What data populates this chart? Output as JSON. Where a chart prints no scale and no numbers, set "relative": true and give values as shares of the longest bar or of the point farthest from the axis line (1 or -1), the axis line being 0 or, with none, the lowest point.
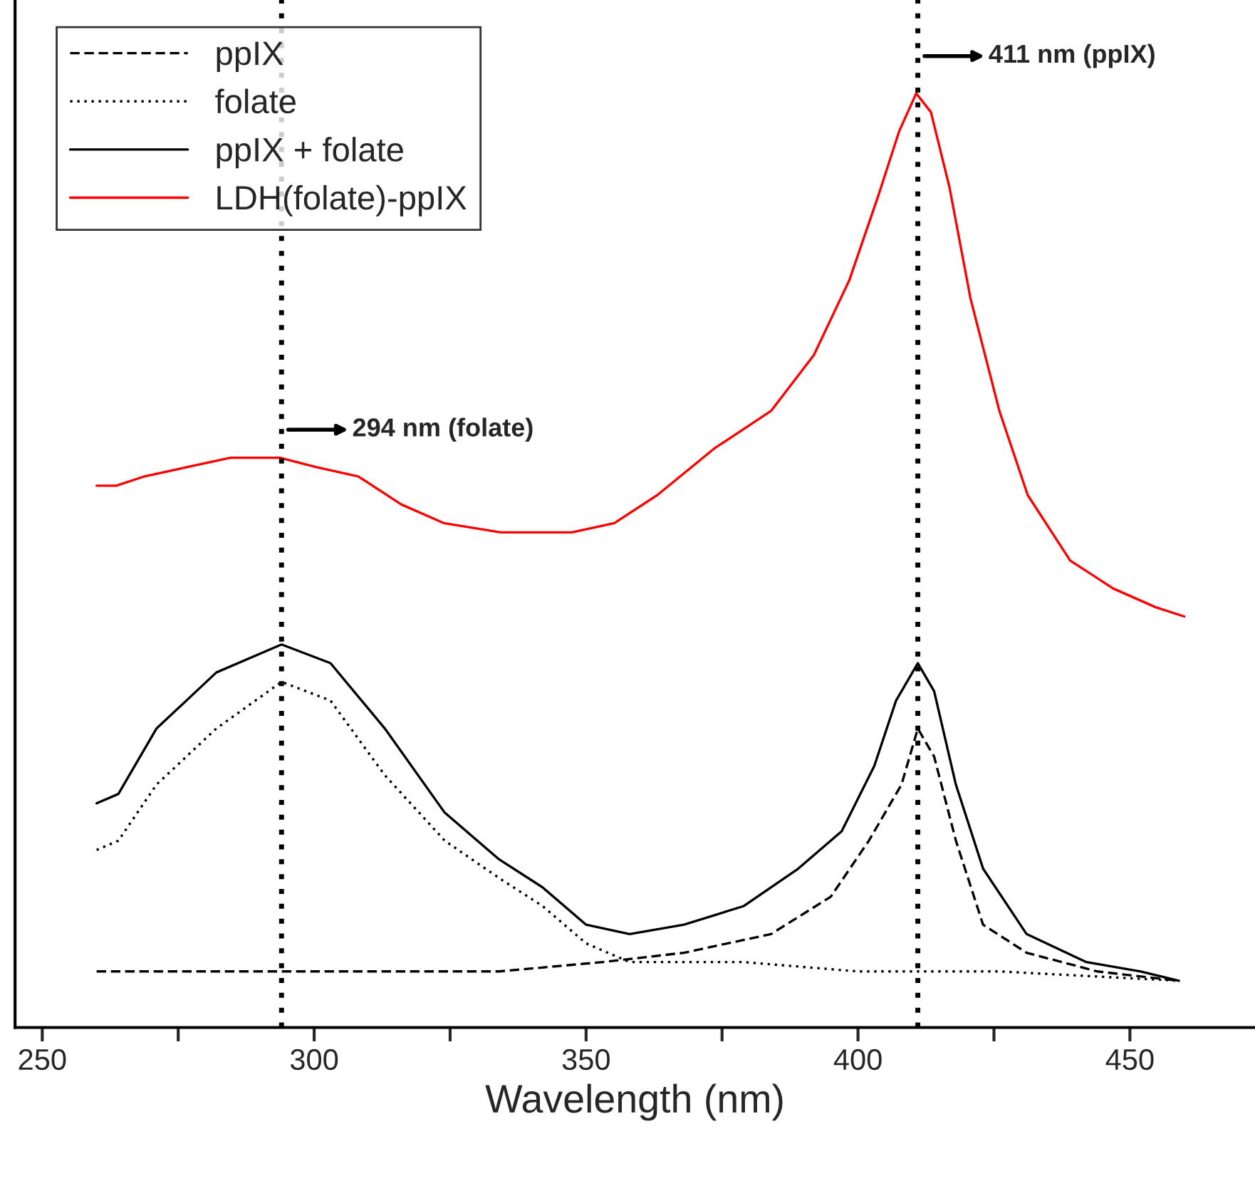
{
  "chart_data": {
    "type": "line",
    "relative": true,
    "xlabel": "Wavelength (nm)",
    "xlim": [
      245,
      473
    ],
    "xticks": [
      250,
      {
        "value": 275,
        "label": null
      },
      300,
      {
        "value": 325,
        "label": null
      },
      350,
      {
        "value": 375,
        "label": null
      },
      400,
      {
        "value": 425,
        "label": null
      },
      450
    ],
    "grid": false,
    "legend": "top left",
    "marker": "none",
    "series": [
      {
        "name": "ppIX",
        "color": "#000000",
        "line_style": "dashed",
        "x": [
          260,
          282,
          308,
          334,
          353,
          368,
          384,
          395,
          402,
          408,
          411,
          414,
          418,
          423,
          431,
          444,
          459
        ],
        "values": [
          0.06,
          0.06,
          0.06,
          0.06,
          0.07,
          0.08,
          0.1,
          0.14,
          0.2,
          0.26,
          0.32,
          0.29,
          0.2,
          0.11,
          0.08,
          0.06,
          0.05
        ]
      },
      {
        "name": "folate",
        "color": "#000000",
        "line_style": "dotted",
        "x": [
          260,
          264,
          271,
          282,
          294,
          303,
          313,
          324,
          334,
          342,
          350,
          358,
          366,
          379,
          400,
          426,
          459
        ],
        "values": [
          0.19,
          0.2,
          0.26,
          0.32,
          0.37,
          0.35,
          0.27,
          0.2,
          0.16,
          0.13,
          0.09,
          0.07,
          0.07,
          0.07,
          0.06,
          0.06,
          0.05
        ]
      },
      {
        "name": "ppIX + folate",
        "color": "#000000",
        "line_style": "solid",
        "x": [
          260,
          264,
          271,
          282,
          294,
          303,
          313,
          324,
          334,
          342,
          350,
          358,
          368,
          379,
          389,
          397,
          403,
          407,
          411,
          414,
          418,
          423,
          431,
          442,
          452,
          459
        ],
        "values": [
          0.24,
          0.25,
          0.32,
          0.38,
          0.41,
          0.39,
          0.32,
          0.23,
          0.18,
          0.15,
          0.11,
          0.1,
          0.11,
          0.13,
          0.17,
          0.21,
          0.28,
          0.35,
          0.39,
          0.36,
          0.26,
          0.17,
          0.1,
          0.07,
          0.06,
          0.05
        ]
      },
      {
        "name": "LDH(folate)-ppIX",
        "color": "#ff0000",
        "line_style": "solid",
        "x": [
          260,
          263.6,
          268.8,
          276.7,
          284.6,
          293.7,
          300.3,
          308.1,
          316,
          323.8,
          334.3,
          347.4,
          355.2,
          363.1,
          373.6,
          384,
          391.9,
          398.4,
          403.7,
          407.6,
          410.7,
          413.4,
          416.8,
          420.7,
          426,
          431.2,
          439,
          446.9,
          454.7,
          460
        ],
        "values": [
          0.58,
          0.58,
          0.59,
          0.6,
          0.61,
          0.61,
          0.6,
          0.59,
          0.56,
          0.54,
          0.53,
          0.53,
          0.54,
          0.57,
          0.62,
          0.66,
          0.72,
          0.8,
          0.89,
          0.96,
          1.0,
          0.98,
          0.9,
          0.78,
          0.66,
          0.57,
          0.5,
          0.47,
          0.45,
          0.44
        ]
      }
    ],
    "ref_lines": [
      {
        "axis": "x",
        "value": 294,
        "label": "294 nm (folate)",
        "color": "#000000",
        "line_style": "dotted"
      },
      {
        "axis": "x",
        "value": 411,
        "label": "411 nm (ppIX)",
        "color": "#000000",
        "line_style": "dotted"
      }
    ]
  }
}
